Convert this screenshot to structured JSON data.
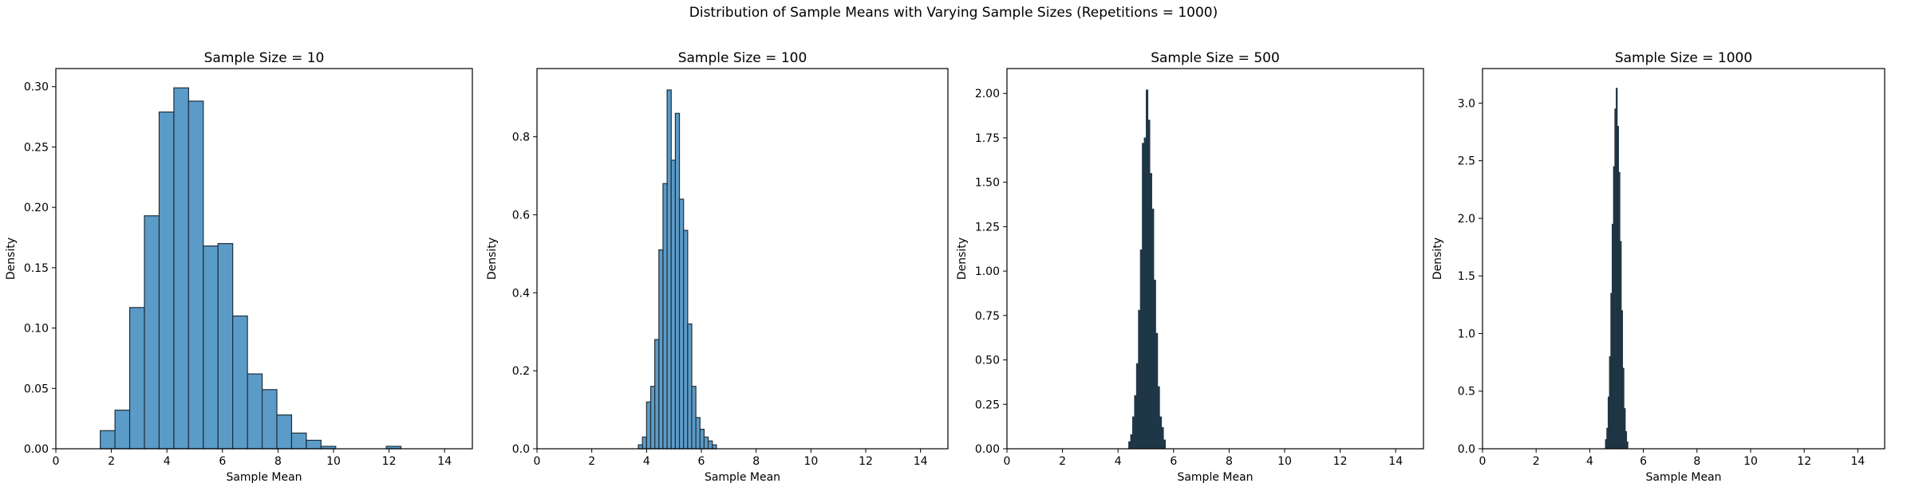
{
  "suptitle": "Distribution of Sample Means with Varying Sample Sizes (Repetitions = 1000)",
  "colors": {
    "bar_fill": "#5b9bc8",
    "bar_edge": "#1f2f3a",
    "dense_fill": "#1e3a4c",
    "axis": "#000000"
  },
  "chart_data": [
    {
      "type": "bar",
      "title": "Sample Size = 10",
      "xlabel": "Sample Mean",
      "ylabel": "Density",
      "xlim": [
        0,
        15
      ],
      "ylim": [
        0,
        0.315
      ],
      "xticks": [
        0,
        2,
        4,
        6,
        8,
        10,
        12,
        14
      ],
      "yticks": [
        0.0,
        0.05,
        0.1,
        0.15,
        0.2,
        0.25,
        0.3
      ],
      "ytick_labels": [
        "0.00",
        "0.05",
        "0.10",
        "0.15",
        "0.20",
        "0.25",
        "0.30"
      ],
      "bin_width": 0.53,
      "bins": [
        {
          "x": 1.6,
          "y": 0.015
        },
        {
          "x": 2.13,
          "y": 0.032
        },
        {
          "x": 2.66,
          "y": 0.117
        },
        {
          "x": 3.19,
          "y": 0.193
        },
        {
          "x": 3.72,
          "y": 0.279
        },
        {
          "x": 4.25,
          "y": 0.299
        },
        {
          "x": 4.78,
          "y": 0.288
        },
        {
          "x": 5.31,
          "y": 0.168
        },
        {
          "x": 5.84,
          "y": 0.17
        },
        {
          "x": 6.37,
          "y": 0.11
        },
        {
          "x": 6.9,
          "y": 0.062
        },
        {
          "x": 7.43,
          "y": 0.049
        },
        {
          "x": 7.96,
          "y": 0.028
        },
        {
          "x": 8.49,
          "y": 0.013
        },
        {
          "x": 9.02,
          "y": 0.007
        },
        {
          "x": 9.55,
          "y": 0.002
        },
        {
          "x": 11.9,
          "y": 0.002
        }
      ]
    },
    {
      "type": "bar",
      "title": "Sample Size = 100",
      "xlabel": "Sample Mean",
      "ylabel": "Density",
      "xlim": [
        0,
        15
      ],
      "ylim": [
        0,
        0.975
      ],
      "xticks": [
        0,
        2,
        4,
        6,
        8,
        10,
        12,
        14
      ],
      "yticks": [
        0.0,
        0.2,
        0.4,
        0.6,
        0.8
      ],
      "ytick_labels": [
        "0.0",
        "0.2",
        "0.4",
        "0.6",
        "0.8"
      ],
      "bin_width": 0.15,
      "bins": [
        {
          "x": 3.7,
          "y": 0.01
        },
        {
          "x": 3.85,
          "y": 0.03
        },
        {
          "x": 4.0,
          "y": 0.12
        },
        {
          "x": 4.15,
          "y": 0.16
        },
        {
          "x": 4.3,
          "y": 0.28
        },
        {
          "x": 4.45,
          "y": 0.51
        },
        {
          "x": 4.6,
          "y": 0.68
        },
        {
          "x": 4.75,
          "y": 0.92
        },
        {
          "x": 4.9,
          "y": 0.74
        },
        {
          "x": 5.05,
          "y": 0.86
        },
        {
          "x": 5.2,
          "y": 0.64
        },
        {
          "x": 5.35,
          "y": 0.56
        },
        {
          "x": 5.5,
          "y": 0.32
        },
        {
          "x": 5.65,
          "y": 0.16
        },
        {
          "x": 5.8,
          "y": 0.08
        },
        {
          "x": 5.95,
          "y": 0.05
        },
        {
          "x": 6.1,
          "y": 0.03
        },
        {
          "x": 6.25,
          "y": 0.02
        },
        {
          "x": 6.4,
          "y": 0.01
        }
      ]
    },
    {
      "type": "bar",
      "title": "Sample Size = 500",
      "xlabel": "Sample Mean",
      "ylabel": "Density",
      "xlim": [
        0,
        15
      ],
      "ylim": [
        0,
        2.14
      ],
      "xticks": [
        0,
        2,
        4,
        6,
        8,
        10,
        12,
        14
      ],
      "yticks": [
        0.0,
        0.25,
        0.5,
        0.75,
        1.0,
        1.25,
        1.5,
        1.75,
        2.0
      ],
      "ytick_labels": [
        "0.00",
        "0.25",
        "0.50",
        "0.75",
        "1.00",
        "1.25",
        "1.50",
        "1.75",
        "2.00"
      ],
      "bin_width": 0.07,
      "bins": [
        {
          "x": 4.38,
          "y": 0.04
        },
        {
          "x": 4.45,
          "y": 0.08
        },
        {
          "x": 4.52,
          "y": 0.18
        },
        {
          "x": 4.59,
          "y": 0.3
        },
        {
          "x": 4.66,
          "y": 0.48
        },
        {
          "x": 4.73,
          "y": 0.78
        },
        {
          "x": 4.8,
          "y": 1.12
        },
        {
          "x": 4.87,
          "y": 1.72
        },
        {
          "x": 4.94,
          "y": 1.75
        },
        {
          "x": 5.01,
          "y": 2.02
        },
        {
          "x": 5.08,
          "y": 1.85
        },
        {
          "x": 5.15,
          "y": 1.55
        },
        {
          "x": 5.22,
          "y": 1.35
        },
        {
          "x": 5.29,
          "y": 0.95
        },
        {
          "x": 5.36,
          "y": 0.65
        },
        {
          "x": 5.43,
          "y": 0.35
        },
        {
          "x": 5.5,
          "y": 0.18
        },
        {
          "x": 5.57,
          "y": 0.12
        },
        {
          "x": 5.64,
          "y": 0.05
        }
      ]
    },
    {
      "type": "bar",
      "title": "Sample Size = 1000",
      "xlabel": "Sample Mean",
      "ylabel": "Density",
      "xlim": [
        0,
        15
      ],
      "ylim": [
        0,
        3.3
      ],
      "xticks": [
        0,
        2,
        4,
        6,
        8,
        10,
        12,
        14
      ],
      "yticks": [
        0.0,
        0.5,
        1.0,
        1.5,
        2.0,
        2.5,
        3.0
      ],
      "ytick_labels": [
        "0.0",
        "0.5",
        "1.0",
        "1.5",
        "2.0",
        "2.5",
        "3.0"
      ],
      "bin_width": 0.05,
      "bins": [
        {
          "x": 4.58,
          "y": 0.08
        },
        {
          "x": 4.63,
          "y": 0.18
        },
        {
          "x": 4.68,
          "y": 0.45
        },
        {
          "x": 4.73,
          "y": 0.8
        },
        {
          "x": 4.78,
          "y": 1.35
        },
        {
          "x": 4.83,
          "y": 1.95
        },
        {
          "x": 4.88,
          "y": 2.45
        },
        {
          "x": 4.93,
          "y": 2.95
        },
        {
          "x": 4.98,
          "y": 3.13
        },
        {
          "x": 5.03,
          "y": 2.8
        },
        {
          "x": 5.08,
          "y": 2.4
        },
        {
          "x": 5.13,
          "y": 1.8
        },
        {
          "x": 5.18,
          "y": 1.2
        },
        {
          "x": 5.23,
          "y": 0.7
        },
        {
          "x": 5.28,
          "y": 0.35
        },
        {
          "x": 5.33,
          "y": 0.15
        },
        {
          "x": 5.38,
          "y": 0.06
        }
      ]
    }
  ]
}
